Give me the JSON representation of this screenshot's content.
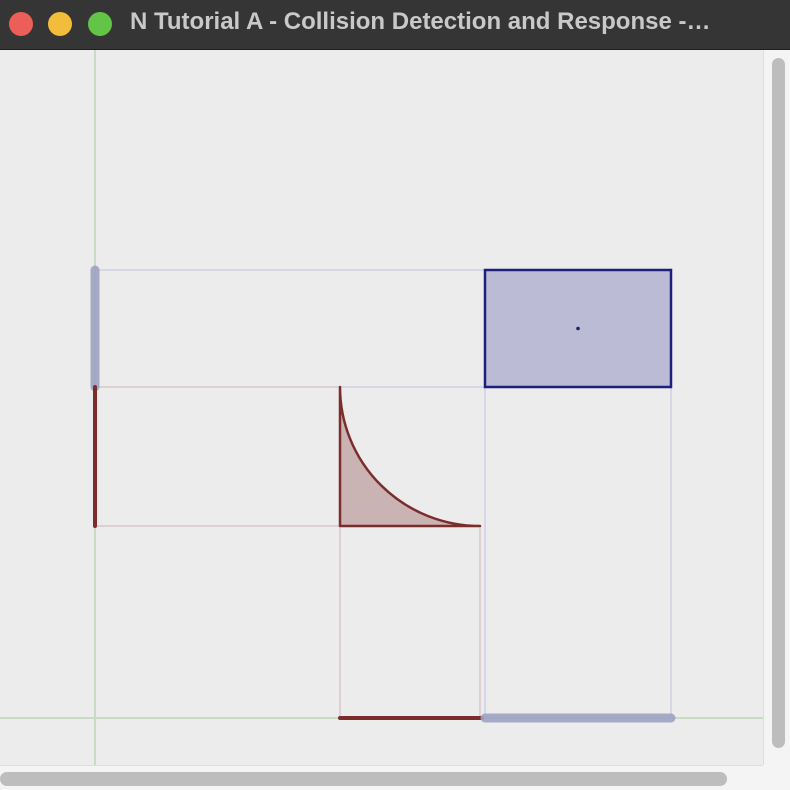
{
  "window": {
    "title": "N Tutorial A - Collision Detection and Response -…"
  },
  "colors": {
    "background": "#ececec",
    "axis_line": "#c8dcc4",
    "tile_stroke": "#7b2d2b",
    "tile_fill": "#c9b4b3",
    "box_stroke": "#1c1f7e",
    "box_fill": "#bbbbd6",
    "projection": "#9fa3c2",
    "guide_blue": "#d6d6e6",
    "guide_red": "#ddd0d3"
  },
  "scene": {
    "objects": [
      "x-axis-line",
      "y-axis-line",
      "aabb-box",
      "box-center-point",
      "concave-quarter-circle-tile",
      "box-x-projection",
      "box-y-projection",
      "tile-x-projection",
      "tile-y-projection"
    ]
  }
}
